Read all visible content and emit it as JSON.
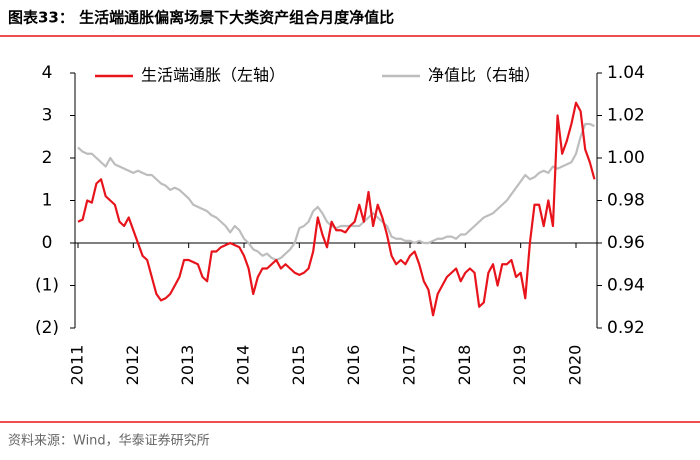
{
  "chart_data": {
    "type": "line",
    "title": "图表33：  生活端通胀偏离场景下大类资产组合月度净值比",
    "source": "资料来源：Wind，华泰证券研究所",
    "categories": [
      "2011",
      null,
      null,
      null,
      null,
      null,
      null,
      null,
      null,
      null,
      null,
      null,
      "2012",
      null,
      null,
      null,
      null,
      null,
      null,
      null,
      null,
      null,
      null,
      null,
      "2013",
      null,
      null,
      null,
      null,
      null,
      null,
      null,
      null,
      null,
      null,
      null,
      "2014",
      null,
      null,
      null,
      null,
      null,
      null,
      null,
      null,
      null,
      null,
      null,
      "2015",
      null,
      null,
      null,
      null,
      null,
      null,
      null,
      null,
      null,
      null,
      null,
      "2016",
      null,
      null,
      null,
      null,
      null,
      null,
      null,
      null,
      null,
      null,
      null,
      "2017",
      null,
      null,
      null,
      null,
      null,
      null,
      null,
      null,
      null,
      null,
      null,
      "2018",
      null,
      null,
      null,
      null,
      null,
      null,
      null,
      null,
      null,
      null,
      null,
      "2019",
      null,
      null,
      null,
      null,
      null,
      null,
      null,
      null,
      null,
      null,
      null,
      "2020",
      null,
      null,
      null,
      null
    ],
    "series": [
      {
        "name": "生活端通胀（左轴）",
        "color": "#e8141c",
        "axis": "y",
        "values": [
          0.5,
          0.55,
          1.0,
          0.95,
          1.4,
          1.5,
          1.1,
          1.0,
          0.9,
          0.5,
          0.4,
          0.6,
          0.3,
          0.0,
          -0.3,
          -0.4,
          -0.8,
          -1.2,
          -1.35,
          -1.3,
          -1.2,
          -1.0,
          -0.8,
          -0.4,
          -0.4,
          -0.45,
          -0.5,
          -0.8,
          -0.9,
          -0.2,
          -0.2,
          -0.1,
          -0.05,
          0.0,
          -0.05,
          -0.1,
          -0.3,
          -0.6,
          -1.2,
          -0.8,
          -0.6,
          -0.6,
          -0.5,
          -0.4,
          -0.6,
          -0.5,
          -0.6,
          -0.7,
          -0.75,
          -0.7,
          -0.6,
          -0.2,
          0.6,
          0.2,
          -0.1,
          0.5,
          0.3,
          0.3,
          0.25,
          0.4,
          0.5,
          0.9,
          0.5,
          1.2,
          0.4,
          0.9,
          0.6,
          0.2,
          -0.3,
          -0.5,
          -0.4,
          -0.5,
          -0.3,
          -0.2,
          -0.5,
          -0.9,
          -1.1,
          -1.7,
          -1.2,
          -1.0,
          -0.8,
          -0.7,
          -0.6,
          -0.9,
          -0.7,
          -0.6,
          -0.7,
          -1.5,
          -1.4,
          -0.7,
          -0.5,
          -1.0,
          -0.5,
          -0.5,
          -0.4,
          -0.8,
          -0.7,
          -1.3,
          0.0,
          0.9,
          0.9,
          0.4,
          1.0,
          0.4,
          3.0,
          2.1,
          2.4,
          2.8,
          3.3,
          3.1,
          2.2,
          1.9,
          1.5
        ]
      },
      {
        "name": "净值比（右轴）",
        "color": "#bdbdbd",
        "axis": "y2",
        "values": [
          1.005,
          1.003,
          1.002,
          1.002,
          1.0,
          0.998,
          0.996,
          1.0,
          0.997,
          0.996,
          0.995,
          0.994,
          0.993,
          0.994,
          0.993,
          0.992,
          0.992,
          0.99,
          0.988,
          0.987,
          0.985,
          0.986,
          0.985,
          0.983,
          0.981,
          0.978,
          0.977,
          0.976,
          0.975,
          0.973,
          0.972,
          0.97,
          0.968,
          0.965,
          0.968,
          0.966,
          0.962,
          0.96,
          0.957,
          0.956,
          0.954,
          0.955,
          0.953,
          0.952,
          0.953,
          0.955,
          0.957,
          0.96,
          0.967,
          0.968,
          0.97,
          0.975,
          0.977,
          0.974,
          0.97,
          0.968,
          0.967,
          0.968,
          0.968,
          0.968,
          0.968,
          0.968,
          0.97,
          0.972,
          0.974,
          0.972,
          0.97,
          0.968,
          0.963,
          0.962,
          0.962,
          0.961,
          0.961,
          0.96,
          0.961,
          0.96,
          0.96,
          0.961,
          0.962,
          0.962,
          0.963,
          0.963,
          0.962,
          0.964,
          0.964,
          0.966,
          0.968,
          0.97,
          0.972,
          0.973,
          0.974,
          0.976,
          0.978,
          0.98,
          0.983,
          0.986,
          0.989,
          0.992,
          0.99,
          0.991,
          0.993,
          0.994,
          0.993,
          0.996,
          0.995,
          0.996,
          0.997,
          0.998,
          1.002,
          1.01,
          1.016,
          1.016,
          1.015
        ]
      }
    ],
    "ylim": [
      -2,
      4
    ],
    "yticks": [
      {
        "value": -2,
        "label": "(2)"
      },
      {
        "value": -1,
        "label": "(1)"
      },
      0,
      1,
      2,
      3,
      4
    ],
    "y2lim": [
      0.92,
      1.04
    ],
    "y2ticks": [
      0.92,
      0.94,
      0.96,
      0.98,
      {
        "value": 1,
        "label": "1.00"
      },
      1.02,
      1.04
    ],
    "legend": "top"
  }
}
